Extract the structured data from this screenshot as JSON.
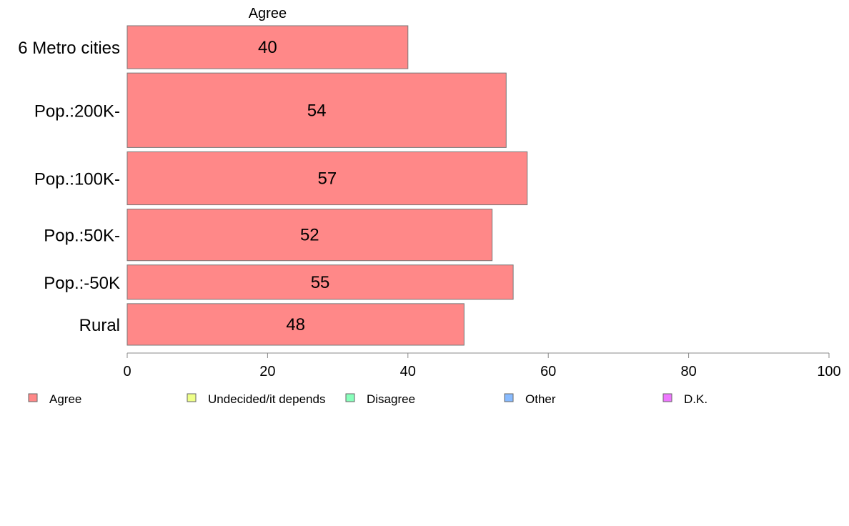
{
  "chart_data": {
    "type": "bar",
    "orientation": "horizontal",
    "stacked": true,
    "header": "Agree",
    "categories": [
      "6 Metro cities",
      "Pop.:200K-",
      "Pop.:100K-",
      "Pop.:50K-",
      "Pop.:-50K",
      "Rural"
    ],
    "series": [
      {
        "name": "Agree",
        "color": "#ff8888",
        "values": [
          40,
          54,
          57,
          52,
          55,
          48
        ],
        "labels": [
          "40",
          "54",
          "57",
          "52",
          "55",
          "48"
        ]
      }
    ],
    "bar_weights": [
      60,
      104,
      74,
      72,
      48,
      58
    ],
    "xlim": [
      0,
      100
    ],
    "xticks": [
      0,
      20,
      40,
      60,
      80,
      100
    ],
    "xtick_labels": [
      "0",
      "20",
      "40",
      "60",
      "80",
      "100"
    ],
    "grid": false,
    "legend": {
      "position": "bottom",
      "items": [
        {
          "label": "Agree",
          "color": "#ff8888"
        },
        {
          "label": "Undecided/it depends",
          "color": "#eeff88"
        },
        {
          "label": "Disagree",
          "color": "#88ffbb"
        },
        {
          "label": "Other",
          "color": "#88bbff"
        },
        {
          "label": "D.K.",
          "color": "#ee77ff"
        }
      ]
    }
  }
}
